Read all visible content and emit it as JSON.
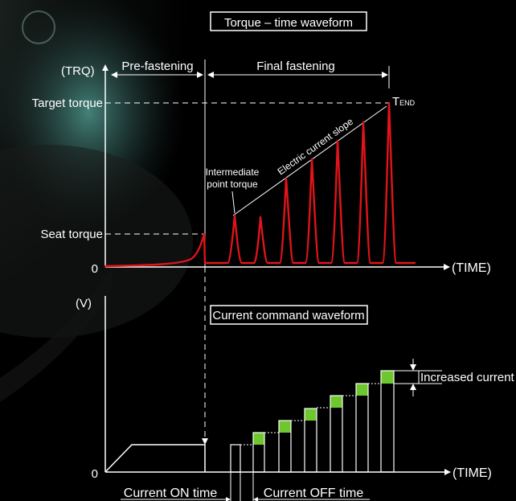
{
  "top_box_title": "Torque – time waveform",
  "bottom_box_title": "Current command waveform",
  "top_chart": {
    "y_axis_label": "(TRQ)",
    "x_axis_label": "(TIME)",
    "origin_label": "0",
    "target_torque_label": "Target torque",
    "seat_torque_label": "Seat torque",
    "t_end_main": "T",
    "t_end_sub": "END",
    "phase_pre_label": "Pre-fastening",
    "phase_final_label": "Final fastening",
    "intermediate_label_line1": "Intermediate",
    "intermediate_label_line2": "point torque",
    "slope_label": "Electric current slope"
  },
  "bottom_chart": {
    "y_axis_label": "(V)",
    "x_axis_label": "(TIME)",
    "origin_label": "0",
    "increased_current_label": "Increased current",
    "on_time_label": "Current ON time",
    "off_time_label": "Current OFF time"
  },
  "colors": {
    "background": "#000000",
    "torque_curve": "#e0141a",
    "increment_fill": "#6ec72e",
    "line": "#ffffff"
  }
}
